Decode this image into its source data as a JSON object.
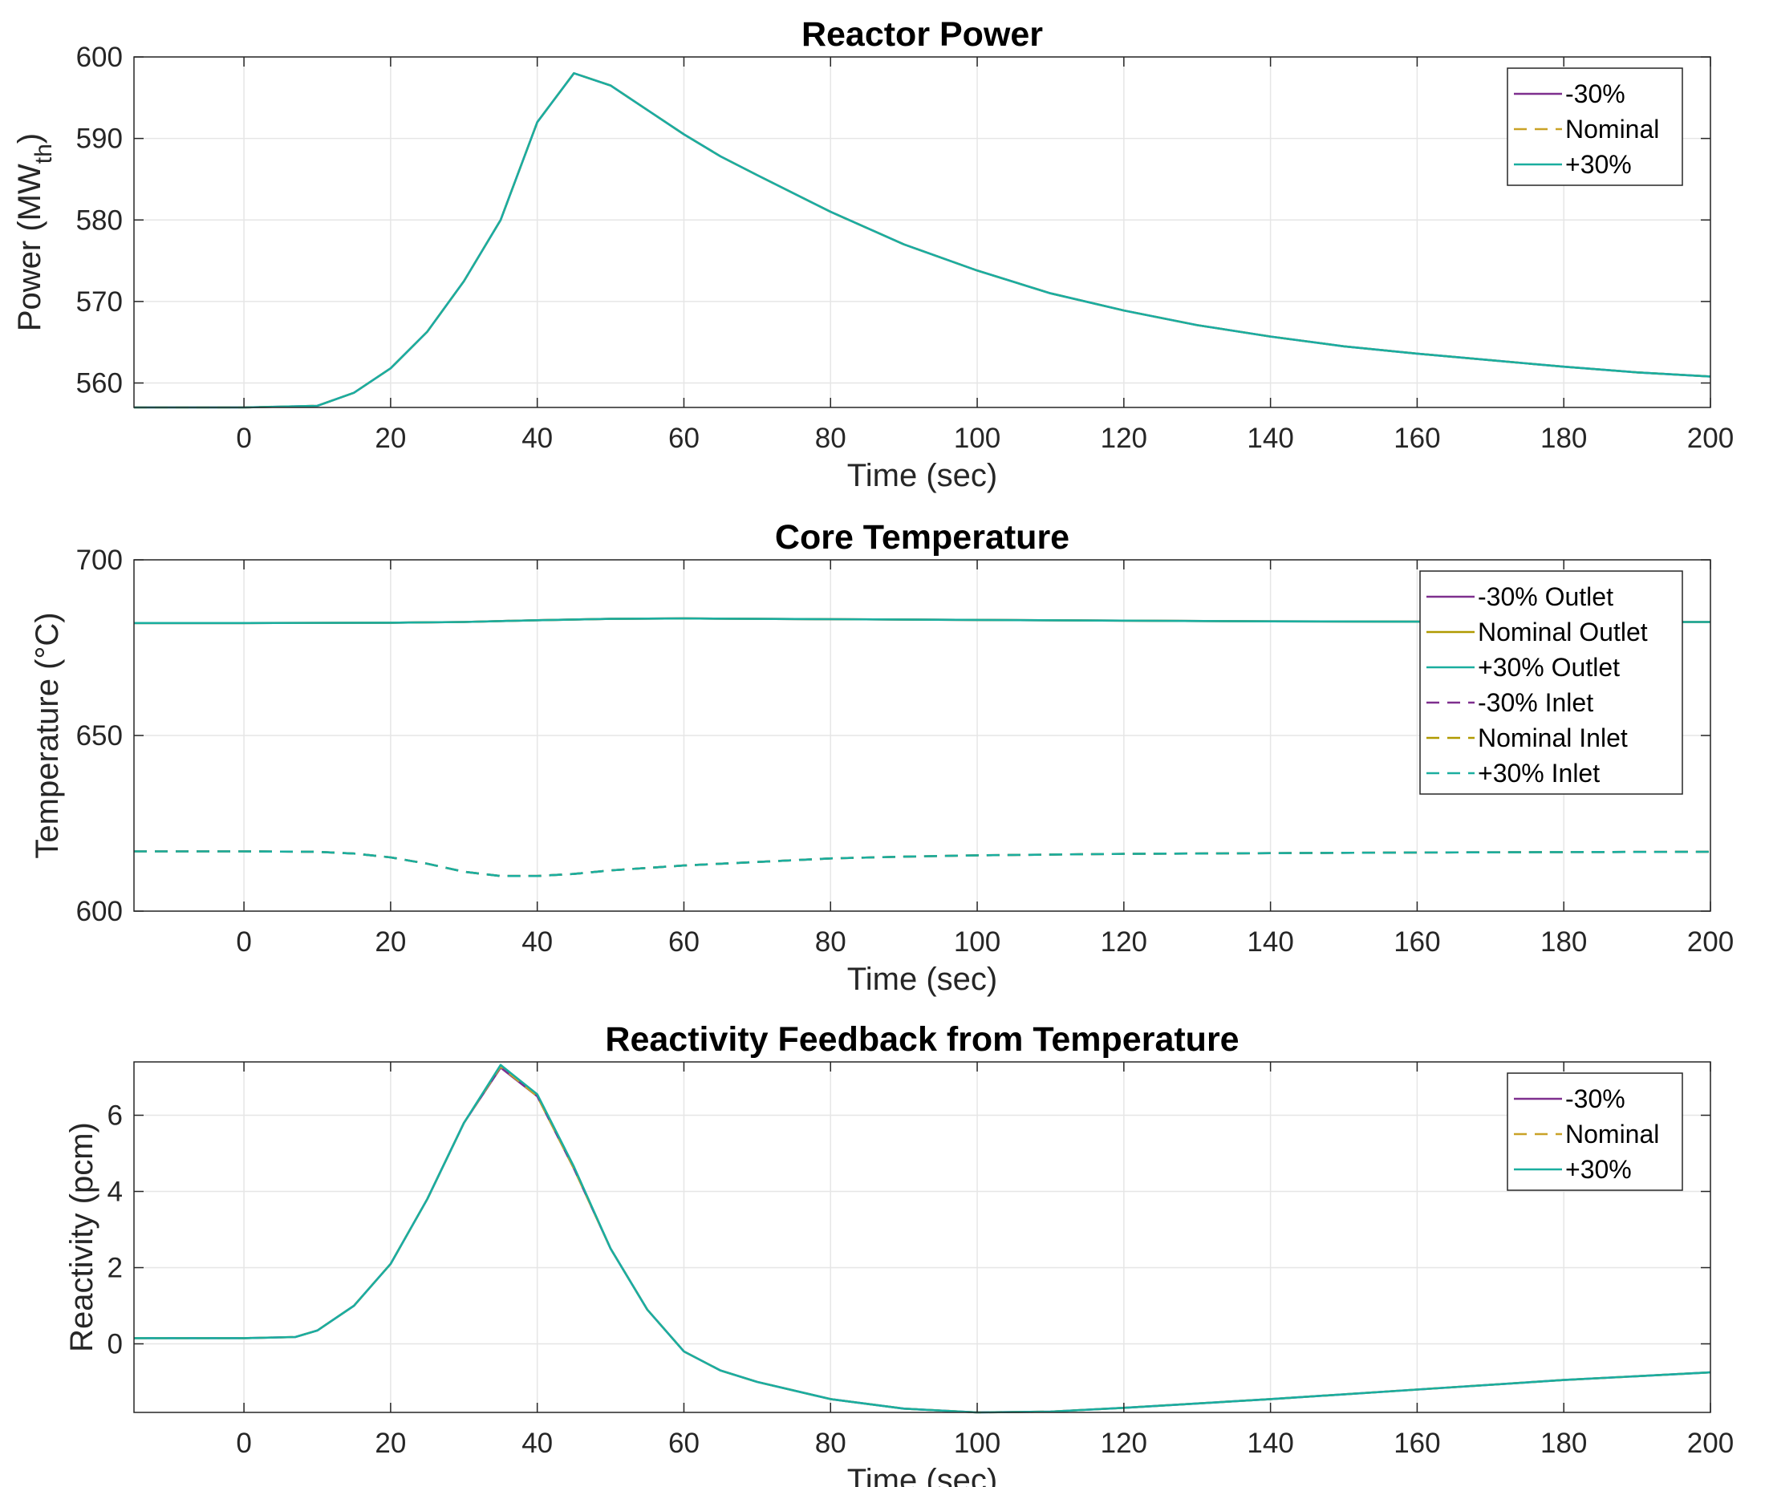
{
  "chart_data": [
    {
      "type": "line",
      "title": "Reactor Power",
      "xlabel": "Time (sec)",
      "ylabel": {
        "main": "Power (MW",
        "sub": "th",
        "close": ")"
      },
      "xlim": [
        -15,
        200
      ],
      "ylim": [
        557,
        600
      ],
      "xticks": [
        0,
        20,
        40,
        60,
        80,
        100,
        120,
        140,
        160,
        180,
        200
      ],
      "yticks": [
        560,
        570,
        580,
        590,
        600
      ],
      "grid": true,
      "legend_position": "top-right",
      "series": [
        {
          "name": "-30%",
          "color": "#7E2F8E",
          "dash": "solid",
          "x": [
            -15,
            0,
            10,
            15,
            20,
            25,
            30,
            35,
            40,
            45,
            50,
            55,
            60,
            65,
            70,
            80,
            90,
            100,
            110,
            120,
            130,
            140,
            150,
            160,
            170,
            180,
            190,
            200
          ],
          "y": [
            557,
            557,
            557.2,
            558.8,
            561.8,
            566.3,
            572.5,
            580,
            592,
            598,
            596.5,
            593.5,
            590.5,
            587.8,
            585.5,
            581,
            577,
            573.8,
            571,
            568.9,
            567.1,
            565.7,
            564.5,
            563.6,
            562.8,
            562,
            561.3,
            560.8
          ]
        },
        {
          "name": "Nominal",
          "color": "#C9A227",
          "dash": "dashed",
          "x": [
            -15,
            0,
            10,
            15,
            20,
            25,
            30,
            35,
            40,
            45,
            50,
            55,
            60,
            65,
            70,
            80,
            90,
            100,
            110,
            120,
            130,
            140,
            150,
            160,
            170,
            180,
            190,
            200
          ],
          "y": [
            557,
            557,
            557.2,
            558.8,
            561.8,
            566.3,
            572.5,
            580,
            592,
            598,
            596.5,
            593.5,
            590.5,
            587.8,
            585.5,
            581,
            577,
            573.8,
            571,
            568.9,
            567.1,
            565.7,
            564.5,
            563.6,
            562.8,
            562,
            561.3,
            560.8
          ]
        },
        {
          "name": "+30%",
          "color": "#1AAE9F",
          "dash": "solid",
          "x": [
            -15,
            0,
            10,
            15,
            20,
            25,
            30,
            35,
            40,
            45,
            50,
            55,
            60,
            65,
            70,
            80,
            90,
            100,
            110,
            120,
            130,
            140,
            150,
            160,
            170,
            180,
            190,
            200
          ],
          "y": [
            557,
            557,
            557.2,
            558.8,
            561.8,
            566.3,
            572.5,
            580,
            592,
            598,
            596.5,
            593.5,
            590.5,
            587.8,
            585.5,
            581,
            577,
            573.8,
            571,
            568.9,
            567.1,
            565.7,
            564.5,
            563.6,
            562.8,
            562,
            561.3,
            560.8
          ]
        }
      ]
    },
    {
      "type": "line",
      "title": "Core Temperature",
      "xlabel": "Time (sec)",
      "ylabel": "Temperature (°C)",
      "xlim": [
        -15,
        200
      ],
      "ylim": [
        600,
        700
      ],
      "xticks": [
        0,
        20,
        40,
        60,
        80,
        100,
        120,
        140,
        160,
        180,
        200
      ],
      "yticks": [
        600,
        650,
        700
      ],
      "grid": true,
      "legend_position": "top-right",
      "series": [
        {
          "name": "-30% Outlet",
          "color": "#7E2F8E",
          "dash": "solid",
          "x": [
            -15,
            0,
            20,
            30,
            40,
            50,
            60,
            80,
            100,
            120,
            140,
            160,
            180,
            200
          ],
          "y": [
            682,
            682,
            682.1,
            682.3,
            682.8,
            683.2,
            683.3,
            683.1,
            682.9,
            682.7,
            682.5,
            682.4,
            682.3,
            682.3
          ]
        },
        {
          "name": "Nominal Outlet",
          "color": "#B09A00",
          "dash": "solid",
          "x": [
            -15,
            0,
            20,
            30,
            40,
            50,
            60,
            80,
            100,
            120,
            140,
            160,
            180,
            200
          ],
          "y": [
            682,
            682,
            682.1,
            682.3,
            682.8,
            683.2,
            683.3,
            683.1,
            682.9,
            682.7,
            682.5,
            682.4,
            682.3,
            682.3
          ]
        },
        {
          "name": "+30% Outlet",
          "color": "#1AAE9F",
          "dash": "solid",
          "x": [
            -15,
            0,
            20,
            30,
            40,
            50,
            60,
            80,
            100,
            120,
            140,
            160,
            180,
            200
          ],
          "y": [
            682,
            682,
            682.1,
            682.3,
            682.8,
            683.2,
            683.3,
            683.1,
            682.9,
            682.7,
            682.5,
            682.4,
            682.3,
            682.3
          ]
        },
        {
          "name": "-30% Inlet",
          "color": "#7E2F8E",
          "dash": "dashed",
          "x": [
            -15,
            0,
            10,
            15,
            20,
            25,
            30,
            35,
            40,
            45,
            50,
            60,
            70,
            80,
            90,
            100,
            120,
            140,
            160,
            180,
            200
          ],
          "y": [
            617,
            617,
            616.9,
            616.4,
            615.3,
            613.5,
            611.2,
            610,
            610,
            610.6,
            611.6,
            613,
            614,
            615,
            615.5,
            615.9,
            616.3,
            616.5,
            616.7,
            616.8,
            616.9
          ]
        },
        {
          "name": "Nominal Inlet",
          "color": "#B09A00",
          "dash": "dashed",
          "x": [
            -15,
            0,
            10,
            15,
            20,
            25,
            30,
            35,
            40,
            45,
            50,
            60,
            70,
            80,
            90,
            100,
            120,
            140,
            160,
            180,
            200
          ],
          "y": [
            617,
            617,
            616.9,
            616.4,
            615.3,
            613.5,
            611.2,
            610,
            610,
            610.6,
            611.6,
            613,
            614,
            615,
            615.5,
            615.9,
            616.3,
            616.5,
            616.7,
            616.8,
            616.9
          ]
        },
        {
          "name": "+30% Inlet",
          "color": "#1AAE9F",
          "dash": "dashed",
          "x": [
            -15,
            0,
            10,
            15,
            20,
            25,
            30,
            35,
            40,
            45,
            50,
            60,
            70,
            80,
            90,
            100,
            120,
            140,
            160,
            180,
            200
          ],
          "y": [
            617,
            617,
            616.9,
            616.4,
            615.3,
            613.5,
            611.2,
            610,
            610,
            610.6,
            611.6,
            613,
            614,
            615,
            615.5,
            615.9,
            616.3,
            616.5,
            616.7,
            616.8,
            616.9
          ]
        }
      ]
    },
    {
      "type": "line",
      "title": "Reactivity Feedback from Temperature",
      "xlabel": "Time (sec)",
      "ylabel": "Reactivity (pcm)",
      "xlim": [
        -15,
        200
      ],
      "ylim": [
        -1.8,
        7.4
      ],
      "xticks": [
        0,
        20,
        40,
        60,
        80,
        100,
        120,
        140,
        160,
        180,
        200
      ],
      "yticks": [
        0,
        2,
        4,
        6
      ],
      "grid": true,
      "legend_position": "top-right",
      "series": [
        {
          "name": "-30%",
          "color": "#7E2F8E",
          "dash": "solid",
          "x": [
            -15,
            0,
            7,
            10,
            15,
            20,
            25,
            30,
            35,
            40,
            45,
            50,
            55,
            60,
            65,
            70,
            80,
            90,
            100,
            110,
            120,
            140,
            160,
            180,
            200
          ],
          "y": [
            0.15,
            0.15,
            0.18,
            0.35,
            1,
            2.1,
            3.8,
            5.8,
            7.25,
            6.5,
            4.6,
            2.5,
            0.9,
            -0.2,
            -0.7,
            -1,
            -1.45,
            -1.7,
            -1.8,
            -1.78,
            -1.68,
            -1.45,
            -1.2,
            -0.95,
            -0.75
          ]
        },
        {
          "name": "Nominal",
          "color": "#C9A227",
          "dash": "dashed",
          "x": [
            -15,
            0,
            7,
            10,
            15,
            20,
            25,
            30,
            35,
            40,
            45,
            50,
            55,
            60,
            65,
            70,
            80,
            90,
            100,
            110,
            120,
            140,
            160,
            180,
            200
          ],
          "y": [
            0.15,
            0.15,
            0.18,
            0.35,
            1,
            2.1,
            3.8,
            5.8,
            7.28,
            6.5,
            4.6,
            2.5,
            0.9,
            -0.2,
            -0.7,
            -1,
            -1.45,
            -1.7,
            -1.8,
            -1.78,
            -1.68,
            -1.45,
            -1.2,
            -0.95,
            -0.75
          ]
        },
        {
          "name": "+30%",
          "color": "#1AAE9F",
          "dash": "solid",
          "x": [
            -15,
            0,
            7,
            10,
            15,
            20,
            25,
            30,
            35,
            40,
            45,
            50,
            55,
            60,
            65,
            70,
            80,
            90,
            100,
            110,
            120,
            140,
            160,
            180,
            200
          ],
          "y": [
            0.15,
            0.15,
            0.18,
            0.35,
            1,
            2.1,
            3.8,
            5.8,
            7.32,
            6.55,
            4.65,
            2.5,
            0.9,
            -0.2,
            -0.7,
            -1,
            -1.45,
            -1.7,
            -1.8,
            -1.78,
            -1.68,
            -1.45,
            -1.2,
            -0.95,
            -0.75
          ]
        }
      ]
    }
  ]
}
